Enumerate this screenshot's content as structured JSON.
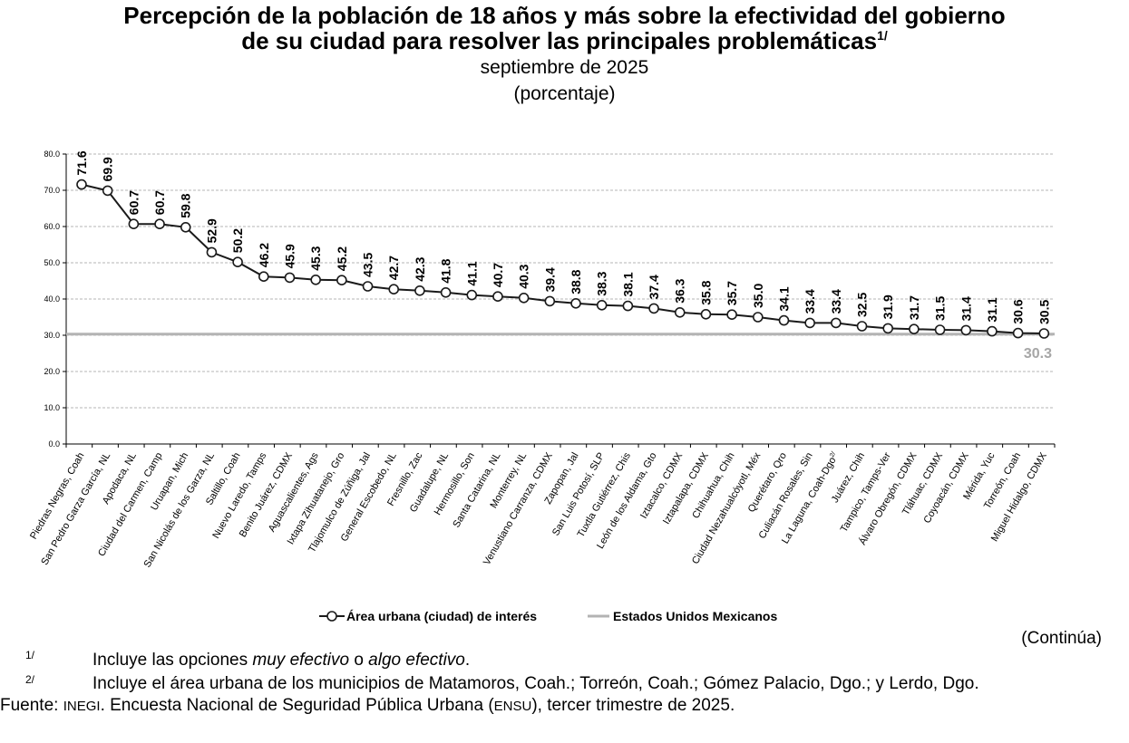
{
  "title": {
    "line1": "Percepción de la población de 18 años y más sobre la efectividad del gobierno",
    "line2": "de su ciudad para resolver las principales problemáticas",
    "line2_sup": "1/",
    "subtitle": "septiembre de 2025",
    "unit": "(porcentaje)"
  },
  "continua": "(Continúa)",
  "footnotes": {
    "n1_mark": "1/",
    "n1_pre": "Incluye las opciones ",
    "n1_em1": "muy efectivo",
    "n1_mid": " o ",
    "n1_em2": "algo efectivo",
    "n1_end": ".",
    "n2_mark": "2/",
    "n2_text": "Incluye el área urbana de los municipios de Matamoros, Coah.; Torreón, Coah.; Gómez Palacio, Dgo.; y Lerdo, Dgo.",
    "src_label": "Fuente: ",
    "src_inegi": "INEGI",
    "src_mid": ". Encuesta Nacional de Seguridad Pública Urbana (",
    "src_ensu": "ENSU",
    "src_end": "), tercer trimestre de 2025."
  },
  "colors": {
    "series": "#1a1a1a",
    "national": "#b3b3b3",
    "national_label": "#a6a6a6",
    "grid": "#b5b5b5",
    "axis": "#000000"
  },
  "chart_data": {
    "type": "line",
    "ylim": [
      0,
      80
    ],
    "yticks": [
      "0.0",
      "10.0",
      "20.0",
      "30.0",
      "40.0",
      "50.0",
      "60.0",
      "70.0",
      "80.0"
    ],
    "grid": true,
    "legend_position": "bottom",
    "categories": [
      "Piedras Negras, Coah",
      "San Pedro Garza García, NL",
      "Apodaca, NL",
      "Ciudad del Carmen, Camp",
      "Uruapan, Mich",
      "San Nicolás de los Garza, NL",
      "Saltillo, Coah",
      "Nuevo Laredo, Tamps",
      "Benito Juárez, CDMX",
      "Aguascalientes, Ags",
      "Ixtapa Zihuatanejo, Gro",
      "Tlajomulco de Zúñiga, Jal",
      "General Escobedo, NL",
      "Fresnillo, Zac",
      "Guadalupe, NL",
      "Hermosillo, Son",
      "Santa Catarina, NL",
      "Monterrey, NL",
      "Venustiano Carranza, CDMX",
      "Zapopan, Jal",
      "San Luis Potosí, SLP",
      "Tuxtla Gutiérrez, Chis",
      "León de los Aldama, Gto",
      "Iztacalco, CDMX",
      "Iztapalapa, CDMX",
      "Chihuahua, Chih",
      "Ciudad Nezahualcóyotl, Méx",
      "Querétaro, Qro",
      "Culiacán Rosales, Sin",
      "La Laguna, Coah-Dgo",
      "Juárez, Chih",
      "Tampico, Tamps-Ver",
      "Álvaro Obregón, CDMX",
      "Tláhuac, CDMX",
      "Coyoacán, CDMX",
      "Mérida, Yuc",
      "Torreón, Coah",
      "Miguel Hidalgo, CDMX"
    ],
    "category_superscripts": {
      "29": "2/"
    },
    "series": [
      {
        "name": "Área urbana (ciudad) de interés",
        "values": [
          71.6,
          69.9,
          60.7,
          60.7,
          59.8,
          52.9,
          50.2,
          46.2,
          45.9,
          45.3,
          45.2,
          43.5,
          42.7,
          42.3,
          41.8,
          41.1,
          40.7,
          40.3,
          39.4,
          38.8,
          38.3,
          38.1,
          37.4,
          36.3,
          35.8,
          35.7,
          35.0,
          34.1,
          33.4,
          33.4,
          32.5,
          31.9,
          31.7,
          31.5,
          31.4,
          31.1,
          30.6,
          30.5
        ],
        "labels": [
          "71.6",
          "69.9",
          "60.7",
          "60.7",
          "59.8",
          "52.9",
          "50.2",
          "46.2",
          "45.9",
          "45.3",
          "45.2",
          "43.5",
          "42.7",
          "42.3",
          "41.8",
          "41.1",
          "40.7",
          "40.3",
          "39.4",
          "38.8",
          "38.3",
          "38.1",
          "37.4",
          "36.3",
          "35.8",
          "35.7",
          "35.0",
          "34.1",
          "33.4",
          "33.4",
          "32.5",
          "31.9",
          "31.7",
          "31.5",
          "31.4",
          "31.1",
          "30.6",
          "30.5"
        ]
      }
    ],
    "reference": {
      "name": "Estados Unidos Mexicanos",
      "value": 30.3,
      "label": "30.3"
    }
  }
}
